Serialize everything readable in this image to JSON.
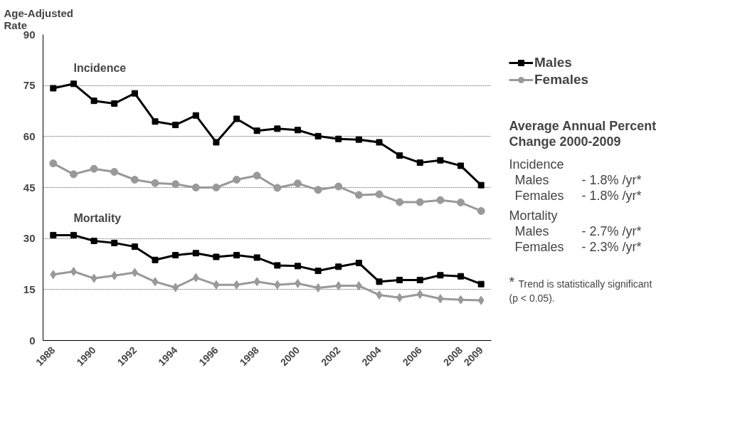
{
  "chart_data": {
    "type": "line",
    "ylabel": "Age-Adjusted Rate",
    "x": [
      1988,
      1989,
      1990,
      1991,
      1992,
      1993,
      1994,
      1995,
      1996,
      1997,
      1998,
      1999,
      2000,
      2001,
      2002,
      2003,
      2004,
      2005,
      2006,
      2007,
      2008,
      2009
    ],
    "xlim": [
      1987.5,
      2009.5
    ],
    "xticks": [
      1988,
      1990,
      1992,
      1994,
      1996,
      1998,
      2000,
      2002,
      2004,
      2006,
      2008,
      2009
    ],
    "ylim": [
      0,
      90
    ],
    "yticks": [
      0,
      15,
      30,
      45,
      60,
      75,
      90
    ],
    "grid": "y",
    "legend": "right",
    "line_style": "solid",
    "series": [
      {
        "name": "Males",
        "color": "#000000",
        "marker": "square",
        "values": [
          74.2,
          75.5,
          70.5,
          69.7,
          72.7,
          64.4,
          63.4,
          66.2,
          58.3,
          65.2,
          61.7,
          62.3,
          61.9,
          60.1,
          59.3,
          59.1,
          58.3,
          54.4,
          52.3,
          53.0,
          51.4,
          45.7
        ]
      },
      {
        "name": "Females",
        "color": "#999999",
        "marker": "circle",
        "values": [
          52.1,
          48.9,
          50.5,
          49.6,
          47.3,
          46.3,
          46.0,
          45.0,
          45.0,
          47.3,
          48.5,
          44.9,
          46.2,
          44.3,
          45.3,
          42.8,
          43.0,
          40.7,
          40.7,
          41.3,
          40.6,
          38.1
        ]
      },
      {
        "color": "#000000",
        "marker": "square",
        "values": [
          31.0,
          31.0,
          29.3,
          28.7,
          27.6,
          23.7,
          25.1,
          25.7,
          24.6,
          25.1,
          24.4,
          22.1,
          21.9,
          20.5,
          21.7,
          22.8,
          17.3,
          17.8,
          17.8,
          19.2,
          18.9,
          16.6
        ]
      },
      {
        "color": "#999999",
        "marker": "diamond",
        "values": [
          19.4,
          20.3,
          18.3,
          19.1,
          20.0,
          17.3,
          15.6,
          18.5,
          16.4,
          16.4,
          17.3,
          16.4,
          16.8,
          15.5,
          16.1,
          16.1,
          13.4,
          12.6,
          13.6,
          12.3,
          12.0,
          11.8
        ]
      }
    ],
    "annotations": [
      "Incidence",
      "Mortality",
      "Average Annual Percent Change 2000-2009",
      "Incidence",
      "Males - 1.8% /yr*",
      "Females - 1.8% /yr*",
      "Mortality",
      "Males - 2.7% /yr*",
      "Females - 2.3% /yr*",
      "* Trend is statistically significant (p < 0.05)."
    ]
  }
}
